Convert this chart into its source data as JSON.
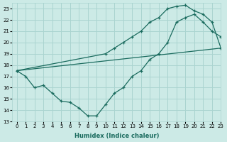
{
  "xlabel": "Humidex (Indice chaleur)",
  "bg_color": "#cceae6",
  "grid_color": "#aad4d0",
  "line_color": "#1a6b5e",
  "xlim": [
    -0.5,
    23
  ],
  "ylim": [
    13,
    23.5
  ],
  "xticks": [
    0,
    1,
    2,
    3,
    4,
    5,
    6,
    7,
    8,
    9,
    10,
    11,
    12,
    13,
    14,
    15,
    16,
    17,
    18,
    19,
    20,
    21,
    22,
    23
  ],
  "yticks": [
    13,
    14,
    15,
    16,
    17,
    18,
    19,
    20,
    21,
    22,
    23
  ],
  "line1_x": [
    0,
    1,
    2,
    3,
    4,
    5,
    6,
    7,
    8,
    9,
    10,
    11,
    12,
    13,
    14,
    15,
    16,
    17,
    18,
    19,
    20,
    21,
    22,
    23
  ],
  "line1_y": [
    17.5,
    17.0,
    16.0,
    16.2,
    15.5,
    14.8,
    14.7,
    14.2,
    13.5,
    13.5,
    14.5,
    15.5,
    16.0,
    17.0,
    17.5,
    18.5,
    19.0,
    20.0,
    21.8,
    22.2,
    22.5,
    21.8,
    21.0,
    20.5
  ],
  "line2_x": [
    0,
    10,
    11,
    12,
    13,
    14,
    15,
    16,
    17,
    18,
    19,
    20,
    21,
    22,
    23
  ],
  "line2_y": [
    17.5,
    19.0,
    19.5,
    20.0,
    20.5,
    21.0,
    21.8,
    22.2,
    23.0,
    23.2,
    23.3,
    22.8,
    22.5,
    21.8,
    19.5
  ],
  "line3_x": [
    0,
    23
  ],
  "line3_y": [
    17.5,
    19.5
  ]
}
